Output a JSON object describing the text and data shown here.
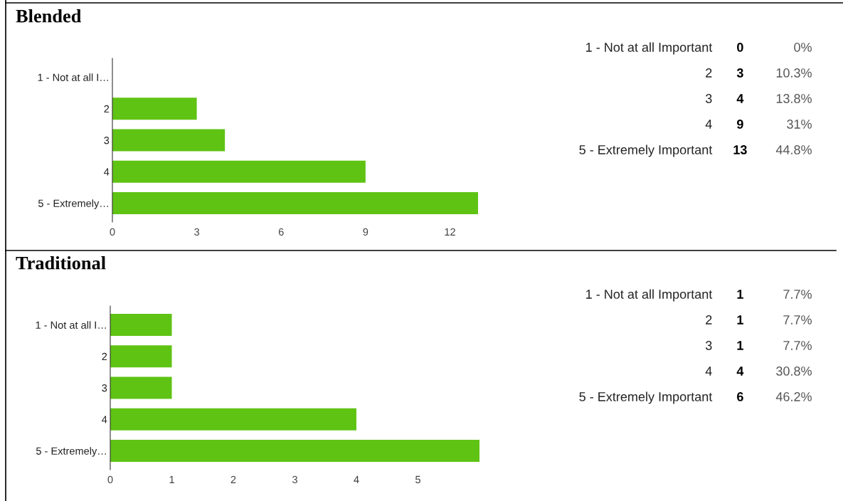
{
  "chart_data": [
    {
      "type": "bar",
      "title": "Blended",
      "orientation": "horizontal",
      "categories": [
        "1 - Not at all I…",
        "2",
        "3",
        "4",
        "5 - Extremely…"
      ],
      "values": [
        0,
        3,
        4,
        9,
        13
      ],
      "color": "#5fc314",
      "xlim": [
        0,
        13
      ],
      "xticks": [
        0,
        3,
        6,
        9,
        12
      ],
      "grid": false,
      "legend": false
    },
    {
      "type": "other",
      "annotations": [
        "1 - Not at all Important",
        "0",
        "0%",
        "2",
        "3",
        "10.3%",
        "3",
        "4",
        "13.8%",
        "4",
        "9",
        "31%",
        "5 - Extremely Important",
        "13",
        "44.8%"
      ]
    },
    {
      "type": "bar",
      "title": "Traditional",
      "orientation": "horizontal",
      "categories": [
        "1 - Not at all I…",
        "2",
        "3",
        "4",
        "5 - Extremely…"
      ],
      "values": [
        1,
        1,
        1,
        4,
        6
      ],
      "color": "#5fc314",
      "xlim": [
        0,
        6
      ],
      "xticks": [
        0,
        1,
        2,
        3,
        4,
        5
      ],
      "grid": false,
      "legend": false
    },
    {
      "type": "other",
      "annotations": [
        "1 - Not at all Important",
        "1",
        "7.7%",
        "2",
        "1",
        "7.7%",
        "3",
        "1",
        "7.7%",
        "4",
        "4",
        "30.8%",
        "5 - Extremely Important",
        "6",
        "46.2%"
      ]
    }
  ]
}
